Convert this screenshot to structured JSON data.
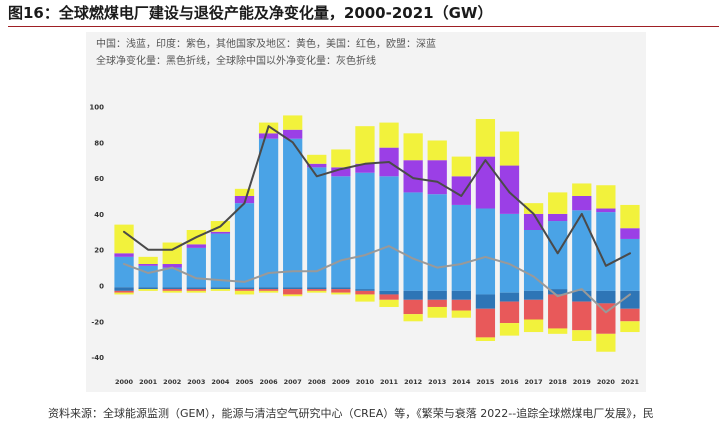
{
  "page": {
    "title": "图16：全球燃煤电厂建设与退役产能及净变化量，2000-2021（GW）",
    "source": "资料来源：全球能源监测（GEM），能源与清洁空气研究中心（CREA）等，《繁荣与衰落 2022--追踪全球燃煤电厂发展》，民"
  },
  "chart_data": {
    "type": "bar",
    "title": "",
    "xlabel": "",
    "ylabel": "",
    "legend_lines": [
      "中国：浅蓝，印度：紫色，其他国家及地区：黄色，美国：红色，欧盟：深蓝",
      "全球净变化量：黑色折线，全球除中国以外净变化量：灰色折线"
    ],
    "categories": [
      "2000",
      "2001",
      "2002",
      "2003",
      "2004",
      "2005",
      "2006",
      "2007",
      "2008",
      "2009",
      "2010",
      "2011",
      "2012",
      "2013",
      "2014",
      "2015",
      "2016",
      "2017",
      "2018",
      "2019",
      "2020",
      "2021"
    ],
    "ylim": [
      -50,
      112
    ],
    "yticks": [
      -40,
      -20,
      0,
      20,
      40,
      60,
      80,
      100
    ],
    "grid": false,
    "stack_order_positive": [
      "中国",
      "印度",
      "其他国家及地区"
    ],
    "stack_order_negative": [
      "中国",
      "欧盟",
      "美国",
      "其他国家及地区"
    ],
    "series": [
      {
        "name": "中国",
        "color": "#4aa3e6",
        "positive": [
          16,
          11,
          10,
          21,
          29,
          46,
          82,
          82,
          66,
          61,
          63,
          61,
          52,
          51,
          45,
          43,
          40,
          31,
          36,
          42,
          41,
          26
        ],
        "negative": [
          -1,
          -1,
          -1,
          -1,
          -1,
          -1,
          -1,
          -1,
          -1,
          -1,
          -2,
          -3,
          -3,
          -3,
          -3,
          -5,
          -4,
          -3,
          -2,
          -3,
          -3,
          -3
        ]
      },
      {
        "name": "印度",
        "color": "#9b3fe6",
        "positive": [
          2,
          1,
          2,
          2,
          1,
          4,
          3,
          5,
          2,
          5,
          5,
          16,
          18,
          19,
          16,
          29,
          27,
          9,
          4,
          8,
          2,
          6
        ],
        "negative": [
          0,
          0,
          0,
          0,
          0,
          0,
          0,
          0,
          0,
          0,
          0,
          0,
          0,
          0,
          0,
          0,
          0,
          0,
          0,
          0,
          0,
          0
        ]
      },
      {
        "name": "其他国家及地区",
        "color": "#f2f23c",
        "positive": [
          16,
          4,
          12,
          8,
          6,
          4,
          6,
          8,
          5,
          10,
          21,
          14,
          15,
          11,
          11,
          21,
          19,
          6,
          12,
          7,
          13,
          13
        ],
        "negative": [
          -1,
          -1,
          -1,
          -1,
          -1,
          -2,
          -1,
          -1,
          -1,
          -1,
          -4,
          -4,
          -4,
          -6,
          -4,
          -2,
          -7,
          -7,
          -3,
          -6,
          -10,
          -6
        ]
      },
      {
        "name": "美国",
        "color": "#e8595a",
        "positive": [
          0,
          0,
          0,
          0,
          0,
          0,
          0,
          0,
          0,
          0,
          0,
          0,
          0,
          0,
          0,
          0,
          0,
          0,
          0,
          0,
          0,
          0
        ],
        "negative": [
          -1,
          0,
          -1,
          -1,
          0,
          -1,
          -1,
          -3,
          -1,
          -2,
          -2,
          -3,
          -8,
          -4,
          -6,
          -16,
          -12,
          -11,
          -19,
          -16,
          -17,
          -7
        ]
      },
      {
        "name": "欧盟",
        "color": "#2e75b6",
        "positive": [
          0,
          0,
          0,
          0,
          0,
          0,
          0,
          0,
          0,
          0,
          0,
          0,
          0,
          0,
          0,
          0,
          0,
          0,
          0,
          0,
          0,
          0
        ],
        "negative": [
          -2,
          -1,
          -1,
          -1,
          -1,
          -1,
          -1,
          -1,
          -1,
          -1,
          -1,
          -2,
          -5,
          -5,
          -5,
          -8,
          -5,
          -5,
          -3,
          -6,
          -7,
          -10
        ]
      }
    ],
    "lines": [
      {
        "name": "全球净变化量",
        "color": "#4a4a4a",
        "values": [
          30,
          20,
          20,
          27,
          33,
          46,
          89,
          80,
          61,
          65,
          68,
          69,
          60,
          58,
          50,
          70,
          52,
          40,
          18,
          40,
          11,
          18
        ]
      },
      {
        "name": "全球除中国以外净变化量",
        "color": "#999999",
        "values": [
          12,
          7,
          10,
          4,
          3,
          2,
          7,
          8,
          8,
          14,
          17,
          22,
          15,
          10,
          12,
          16,
          12,
          5,
          -6,
          -2,
          -15,
          -5
        ]
      }
    ]
  }
}
